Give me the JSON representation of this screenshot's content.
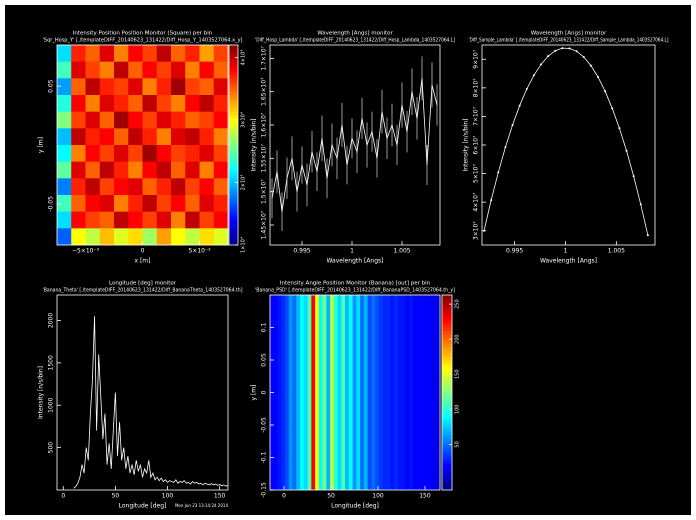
{
  "chart_data": [
    {
      "type": "heatmap",
      "title": "Intensity Position Position Monitor (Square) per bin",
      "subtitle": "'Sqr_Hosp_Y' [./templateDIFF_20140623_131422/Diff_Hosp_Y_1403527064.x_y]",
      "xlabel": "x [m]",
      "ylabel": "y [m]",
      "colormap": "jet",
      "xlim": [
        -0.0075,
        0.0075
      ],
      "ylim": [
        -0.085,
        0.085
      ],
      "xticks": [
        {
          "value": -0.005,
          "label": "−5×10⁻³"
        },
        0,
        {
          "value": 0.005,
          "label": "5×10⁻³"
        }
      ],
      "yticks": [
        0.05,
        -0.05
      ],
      "zlim": [
        10000,
        42000
      ],
      "zticks": [
        {
          "value": 10000,
          "label": "1×10⁴"
        },
        {
          "value": 20000,
          "label": "2×10⁴"
        },
        {
          "value": 30000,
          "label": "3×10⁴"
        },
        {
          "value": 40000,
          "label": "4×10⁴"
        }
      ],
      "z": [
        [
          21000,
          37000,
          35000,
          39000,
          34000,
          38000,
          36000,
          40000,
          35000,
          37000,
          33000,
          36000
        ],
        [
          24000,
          39000,
          36000,
          34000,
          40000,
          35000,
          38000,
          36000,
          39000,
          34000,
          38000,
          35000
        ],
        [
          19000,
          35000,
          40000,
          37000,
          36000,
          39000,
          34000,
          37000,
          41000,
          36000,
          35000,
          39000
        ],
        [
          23000,
          38000,
          34000,
          39000,
          37000,
          35000,
          40000,
          36000,
          34000,
          38000,
          40000,
          37000
        ],
        [
          26000,
          36000,
          39000,
          35000,
          41000,
          38000,
          36000,
          39000,
          37000,
          35000,
          36000,
          38000
        ],
        [
          20000,
          40000,
          37000,
          38000,
          35000,
          40000,
          37000,
          34000,
          39000,
          40000,
          37000,
          34000
        ],
        [
          22000,
          34000,
          38000,
          36000,
          39000,
          36000,
          41000,
          38000,
          36000,
          37000,
          39000,
          36000
        ],
        [
          25000,
          39000,
          35000,
          40000,
          37000,
          34000,
          38000,
          40000,
          35000,
          39000,
          34000,
          38000
        ],
        [
          18000,
          37000,
          40000,
          36000,
          38000,
          39000,
          35000,
          37000,
          40000,
          36000,
          38000,
          35000
        ],
        [
          24000,
          35000,
          38000,
          39000,
          34000,
          37000,
          40000,
          36000,
          38000,
          35000,
          39000,
          37000
        ],
        [
          21000,
          38000,
          36000,
          35000,
          40000,
          38000,
          36000,
          39000,
          34000,
          40000,
          36000,
          38000
        ],
        [
          17000,
          30000,
          28000,
          32000,
          29000,
          31000,
          27000,
          33000,
          30000,
          28000,
          31000,
          29000
        ]
      ]
    },
    {
      "type": "line",
      "title": "Wavelength [Angs] monitor",
      "subtitle": "'Diff_Hosp_Lambda' [./templateDIFF_20140623_131422/Diff_Hosp_Lambda_1403527064.L]",
      "xlabel": "Wavelength [Angs]",
      "ylabel": "Intensity [n/s/bin]",
      "color": "#ffffff",
      "xlim": [
        0.9918,
        1.0088
      ],
      "ylim": [
        14200000,
        17200000
      ],
      "xticks": [
        0.995,
        1,
        1.005
      ],
      "yticks": [
        {
          "value": 14500000,
          "label": "1.45×10⁷"
        },
        {
          "value": 15000000,
          "label": "1.5×10⁷"
        },
        {
          "value": 15500000,
          "label": "1.55×10⁷"
        },
        {
          "value": 16000000,
          "label": "1.6×10⁷"
        },
        {
          "value": 16500000,
          "label": "1.65×10⁷"
        },
        {
          "value": 17000000,
          "label": "1.7×10⁷"
        }
      ],
      "x": [
        0.992,
        0.9925,
        0.993,
        0.9935,
        0.994,
        0.9945,
        0.995,
        0.9955,
        0.996,
        0.9965,
        0.997,
        0.9975,
        0.998,
        0.9985,
        0.999,
        0.9995,
        1,
        1.0005,
        1.001,
        1.0015,
        1.002,
        1.0025,
        1.003,
        1.0035,
        1.004,
        1.0045,
        1.005,
        1.0055,
        1.006,
        1.0065,
        1.007,
        1.0075,
        1.008,
        1.0085
      ],
      "values": [
        14900000,
        15300000,
        14700000,
        15200000,
        15500000,
        15000000,
        15400000,
        15100000,
        15600000,
        15300000,
        15800000,
        15200000,
        15700000,
        15500000,
        16000000,
        15400000,
        15800000,
        15600000,
        16100000,
        15700000,
        15900000,
        15500000,
        16200000,
        15800000,
        16000000,
        15700000,
        16300000,
        15900000,
        16500000,
        16100000,
        16700000,
        15400000,
        16600000,
        16300000
      ],
      "errors": [
        300000,
        320000,
        290000,
        310000,
        330000,
        300000,
        280000,
        320000,
        310000,
        290000,
        340000,
        300000,
        320000,
        310000,
        330000,
        290000,
        300000,
        320000,
        310000,
        340000,
        300000,
        290000,
        330000,
        310000,
        320000,
        300000,
        340000,
        310000,
        350000,
        320000,
        330000,
        300000,
        340000,
        310000
      ]
    },
    {
      "type": "line",
      "title": "Wavelength [Angs] monitor",
      "subtitle": "'Diff_Sample_Lambda' [./templateDIFF_20140623_131422/Diff_Sample_Lambda_1403527064.L]",
      "xlabel": "Wavelength [Angs]",
      "ylabel": "Intensity [n/s/bin]",
      "color": "#ffffff",
      "markers": true,
      "xlim": [
        0.9918,
        1.0088
      ],
      "ylim": [
        25000000,
        95000000
      ],
      "xticks": [
        0.995,
        1,
        1.005
      ],
      "yticks": [
        {
          "value": 30000000,
          "label": "3×10⁷"
        },
        {
          "value": 40000000,
          "label": "4×10⁷"
        },
        {
          "value": 50000000,
          "label": "5×10⁷"
        },
        {
          "value": 60000000,
          "label": "6×10⁷"
        },
        {
          "value": 70000000,
          "label": "7×10⁷"
        },
        {
          "value": 80000000,
          "label": "8×10⁷"
        },
        {
          "value": 90000000,
          "label": "9×10⁷"
        }
      ],
      "x": [
        0.992,
        0.9927,
        0.9934,
        0.9941,
        0.9948,
        0.9955,
        0.9962,
        0.9969,
        0.9976,
        0.9983,
        0.999,
        0.9997,
        1.0004,
        1.0011,
        1.0018,
        1.0025,
        1.0032,
        1.0039,
        1.0046,
        1.0053,
        1.006,
        1.0067,
        1.0074,
        1.0081
      ],
      "values": [
        30000000,
        40700000,
        50400000,
        59200000,
        67000000,
        73800000,
        79600000,
        84400000,
        88200000,
        91100000,
        93000000,
        93900000,
        93800000,
        92800000,
        90800000,
        87800000,
        83800000,
        78800000,
        72800000,
        65900000,
        58000000,
        49100000,
        39200000,
        28400000
      ]
    },
    {
      "type": "line",
      "title": "Longitude [deg] monitor",
      "subtitle": "'Banana_Theta' [./templateDIFF_20140623_131422/Diff_BananaTheta_1403527064.th]",
      "xlabel": "Longitude [deg]",
      "ylabel": "Intensity [n/s/bin]",
      "color": "#ffffff",
      "footer": "Mon Jun 23 13:14:24 2014",
      "xlim": [
        -6,
        158
      ],
      "ylim": [
        0,
        2300
      ],
      "xticks": [
        0,
        50,
        100,
        150
      ],
      "yticks": [
        500,
        1000,
        1500,
        2000
      ],
      "x": [
        10,
        12,
        14,
        16,
        18,
        20,
        22,
        24,
        26,
        28,
        30,
        32,
        34,
        36,
        38,
        40,
        42,
        44,
        46,
        48,
        50,
        52,
        54,
        56,
        58,
        60,
        62,
        64,
        66,
        68,
        70,
        72,
        74,
        76,
        78,
        80,
        82,
        84,
        86,
        88,
        90,
        92,
        94,
        96,
        98,
        100,
        102,
        104,
        106,
        108,
        110,
        112,
        114,
        116,
        118,
        120,
        122,
        124,
        126,
        128,
        130,
        132,
        134,
        136,
        138,
        140,
        142,
        144,
        146,
        148,
        150,
        152,
        154,
        156,
        158
      ],
      "values": [
        20,
        40,
        80,
        150,
        300,
        200,
        500,
        350,
        900,
        1300,
        2050,
        700,
        1600,
        1100,
        600,
        900,
        300,
        550,
        250,
        700,
        1150,
        400,
        800,
        350,
        500,
        250,
        400,
        200,
        300,
        180,
        350,
        220,
        300,
        150,
        250,
        200,
        350,
        150,
        200,
        120,
        150,
        110,
        140,
        100,
        120,
        90,
        110,
        100,
        90,
        120,
        80,
        100,
        90,
        110,
        80,
        90,
        70,
        100,
        80,
        90,
        70,
        80,
        60,
        80,
        70,
        60,
        75,
        60,
        70,
        55,
        65,
        50,
        60,
        45,
        55
      ]
    },
    {
      "type": "stripes",
      "title": "Intensity Angle Position Monitor (Banana) [out] per bin",
      "subtitle": "'Banana_PSD' [./templateDIFF_20140623_131422/Diff_BananaPSD_1403527064.th_y]",
      "xlabel": "Longitude [deg]",
      "ylabel": "y [m]",
      "colormap": "jet",
      "xlim": [
        -15,
        166
      ],
      "ylim": [
        -0.15,
        0.15
      ],
      "xticks": [
        0,
        50,
        100,
        150
      ],
      "yticks": [
        0.1,
        0.05,
        0,
        -0.05,
        -0.1,
        -0.15
      ],
      "zlim": [
        -15,
        263
      ],
      "zticks": [
        50,
        100,
        150,
        200,
        250
      ],
      "bins": [
        -15,
        -11,
        -7,
        -3,
        1,
        5,
        9,
        13,
        17,
        21,
        25,
        29,
        33,
        37,
        41,
        45,
        49,
        53,
        57,
        61,
        65,
        69,
        73,
        77,
        81,
        85,
        89,
        93,
        97,
        101,
        105,
        109,
        113,
        117,
        121,
        125,
        129,
        133,
        137,
        141,
        145,
        149,
        153,
        157,
        161,
        165
      ],
      "values": [
        20,
        20,
        25,
        30,
        40,
        60,
        50,
        70,
        90,
        80,
        110,
        230,
        160,
        90,
        120,
        70,
        140,
        100,
        80,
        110,
        70,
        90,
        60,
        80,
        50,
        70,
        40,
        50,
        40,
        35,
        30,
        30,
        25,
        30,
        25,
        25,
        20,
        25,
        20,
        20,
        20,
        20,
        20,
        15,
        15
      ]
    }
  ]
}
